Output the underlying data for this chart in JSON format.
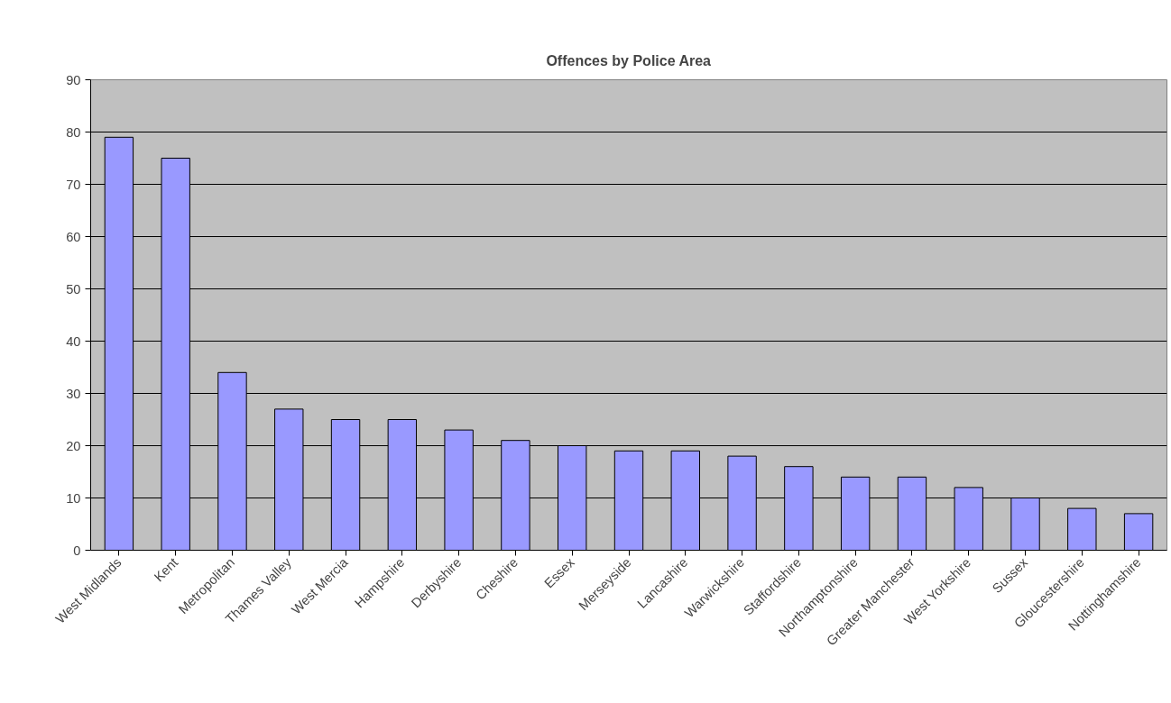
{
  "chart_data": {
    "type": "bar",
    "title": "Offences by Police Area",
    "categories": [
      "West Midlands",
      "Kent",
      "Metropolitan",
      "Thames Valley",
      "West Mercia",
      "Hampshire",
      "Derbyshire",
      "Cheshire",
      "Essex",
      "Merseyside",
      "Lancashire",
      "Warwickshire",
      "Staffordshire",
      "Northamptonshire",
      "Greater Manchester",
      "West Yorkshire",
      "Sussex",
      "Gloucestershire",
      "Nottinghamshire"
    ],
    "values": [
      79,
      75,
      34,
      27,
      25,
      25,
      23,
      21,
      20,
      19,
      19,
      18,
      16,
      14,
      14,
      12,
      10,
      8,
      7
    ],
    "color": "#9999ff",
    "ylim": [
      0,
      90
    ],
    "yticks": [
      0,
      10,
      20,
      30,
      40,
      50,
      60,
      70,
      80,
      90
    ],
    "grid": "y"
  }
}
